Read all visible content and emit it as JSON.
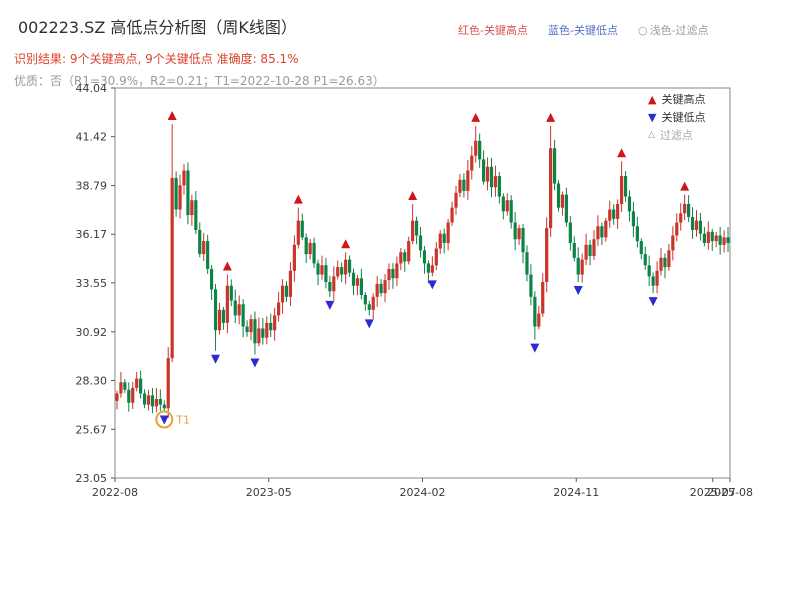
{
  "header": {
    "title": "002223.SZ 高低点分析图（周K线图）",
    "top_legend": [
      {
        "label": "红色-关键高点",
        "color": "#d9534f"
      },
      {
        "label": "蓝色-关键低点",
        "color": "#5470c6"
      },
      {
        "marker": "○",
        "label": "浅色-过滤点",
        "color": "#9a9a9a"
      }
    ],
    "result_line": "识别结果: 9个关键高点, 9个关键低点  准确度: 85.1%",
    "quality_line": "优质：否（R1=30.9%，R2=0.21；T1=2022-10-28 P1=26.63）"
  },
  "chart_data": {
    "type": "candlestick",
    "title": "002223.SZ 高低点分析图（周K线图）",
    "freq": "weekly",
    "start": "2022-08-05",
    "ylim": [
      23.05,
      44.04
    ],
    "y_ticks": [
      23.05,
      25.67,
      28.3,
      30.92,
      33.55,
      36.17,
      38.79,
      41.42,
      44.04
    ],
    "x_ticks": [
      {
        "label": "2022-08",
        "f": 0.0
      },
      {
        "label": "2023-05",
        "f": 0.25
      },
      {
        "label": "2024-02",
        "f": 0.5
      },
      {
        "label": "2024-11",
        "f": 0.75
      },
      {
        "label": "2025-07",
        "f": 0.972
      },
      {
        "label": "2025-08",
        "f": 1.0
      }
    ],
    "first_open": 27.2,
    "closes": [
      27.6,
      28.2,
      27.8,
      27.1,
      27.9,
      28.4,
      27.6,
      27.0,
      27.5,
      26.9,
      27.3,
      27.0,
      26.8,
      29.5,
      39.2,
      37.5,
      38.8,
      39.6,
      37.2,
      38.0,
      36.4,
      35.1,
      35.8,
      34.3,
      33.2,
      31.0,
      32.1,
      31.4,
      33.4,
      32.6,
      31.8,
      32.4,
      31.2,
      30.9,
      31.6,
      30.3,
      31.1,
      30.6,
      31.4,
      31.0,
      31.8,
      32.5,
      33.4,
      32.8,
      34.2,
      35.6,
      36.9,
      36.0,
      35.1,
      35.7,
      34.6,
      34.0,
      34.5,
      33.6,
      33.1,
      33.9,
      34.4,
      34.0,
      34.8,
      34.1,
      33.4,
      33.8,
      32.9,
      32.4,
      32.1,
      32.8,
      33.5,
      33.0,
      33.7,
      34.3,
      33.8,
      34.6,
      35.2,
      34.7,
      35.8,
      36.9,
      36.1,
      35.3,
      34.6,
      34.1,
      34.5,
      35.4,
      36.2,
      35.7,
      36.8,
      37.6,
      38.4,
      39.1,
      38.5,
      39.6,
      40.4,
      41.2,
      40.2,
      39.0,
      39.8,
      38.7,
      39.3,
      38.2,
      37.4,
      38.0,
      36.8,
      35.9,
      36.5,
      35.2,
      34.0,
      32.8,
      31.2,
      31.9,
      33.6,
      36.5,
      40.8,
      38.9,
      37.6,
      38.3,
      36.8,
      35.7,
      34.9,
      34.0,
      34.8,
      35.6,
      35.0,
      35.9,
      36.6,
      36.0,
      36.9,
      37.5,
      37.0,
      37.8,
      39.3,
      38.2,
      37.4,
      36.6,
      35.8,
      35.1,
      34.5,
      33.9,
      33.4,
      34.2,
      34.9,
      34.4,
      35.3,
      36.1,
      36.8,
      37.3,
      37.8,
      37.1,
      36.4,
      36.9,
      36.2,
      35.7,
      36.3,
      35.8,
      36.1,
      35.6,
      36.0,
      35.7
    ],
    "key_highs": [
      {
        "week": 14,
        "price": 42.1
      },
      {
        "week": 28,
        "price": 34.0
      },
      {
        "week": 46,
        "price": 37.6
      },
      {
        "week": 58,
        "price": 35.2
      },
      {
        "week": 75,
        "price": 37.8
      },
      {
        "week": 91,
        "price": 42.0
      },
      {
        "week": 110,
        "price": 42.0
      },
      {
        "week": 128,
        "price": 40.1
      },
      {
        "week": 144,
        "price": 38.3
      }
    ],
    "key_lows": [
      {
        "week": 12,
        "price": 26.63
      },
      {
        "week": 25,
        "price": 29.9
      },
      {
        "week": 35,
        "price": 29.7
      },
      {
        "week": 54,
        "price": 32.8
      },
      {
        "week": 64,
        "price": 31.8
      },
      {
        "week": 80,
        "price": 33.9
      },
      {
        "week": 106,
        "price": 30.5
      },
      {
        "week": 117,
        "price": 33.6
      },
      {
        "week": 136,
        "price": 33.0
      }
    ],
    "t1": {
      "week": 12,
      "date": "2022-10-28",
      "price": 26.63,
      "label": "T1"
    },
    "legend": [
      {
        "icon": "▲",
        "label": "关键高点"
      },
      {
        "icon": "▼",
        "label": "关键低点"
      },
      {
        "icon": "△",
        "label": "过滤点"
      }
    ],
    "colors": {
      "up": "#c9342b",
      "down": "#0e8247",
      "key_high": "#d21616",
      "key_low": "#2b2bd0",
      "filter": "#9a9a9a",
      "t1": "#e8a13c",
      "axis_text": "#3a3a3a",
      "border": "#8a8a8a"
    }
  }
}
